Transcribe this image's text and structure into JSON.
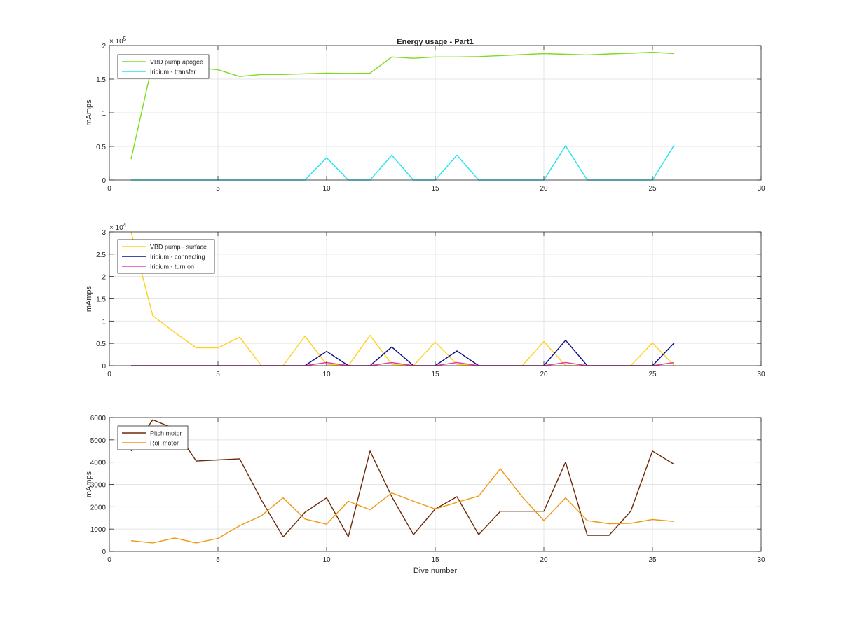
{
  "figure": {
    "title": "Energy usage - Part1",
    "xlabel": "Dive number"
  },
  "colors": {
    "vbd_apogee": "#7ddc1f",
    "iridium_transfer": "#1fe4ee",
    "vbd_surface": "#ffd11a",
    "iridium_connecting": "#0a0a8c",
    "iridium_turn_on": "#e040a8",
    "pitch_motor": "#6b2a08",
    "roll_motor": "#ee9812"
  },
  "chart_data": [
    {
      "type": "line",
      "title": "Energy usage - Part1",
      "xlabel": "",
      "ylabel": "mAmps",
      "xlim": [
        0,
        30
      ],
      "ylim": [
        0,
        200000
      ],
      "x_ticks": [
        0,
        5,
        10,
        15,
        20,
        25,
        30
      ],
      "y_ticks": [
        0,
        50000,
        100000,
        150000,
        200000
      ],
      "y_tick_labels": [
        "0",
        "0.5",
        "1",
        "1.5",
        "2"
      ],
      "exponent_label": "× 10^5",
      "grid": true,
      "legend_position": "top-left",
      "series": [
        {
          "name": "VBD pump apogee",
          "color_key": "vbd_apogee",
          "x": [
            1,
            2,
            3,
            4,
            5,
            6,
            7,
            8,
            9,
            10,
            11,
            12,
            13,
            14,
            15,
            16,
            17,
            18,
            19,
            20,
            21,
            22,
            23,
            24,
            25,
            26
          ],
          "values": [
            31000,
            175000,
            168000,
            167000,
            164000,
            154000,
            157000,
            157000,
            158000,
            159000,
            158500,
            159000,
            183000,
            181000,
            183000,
            183000,
            183500,
            185000,
            186500,
            188000,
            187000,
            186000,
            187500,
            188500,
            190000,
            188000
          ]
        },
        {
          "name": "Iridium - transfer",
          "color_key": "iridium_transfer",
          "x": [
            1,
            2,
            3,
            4,
            5,
            6,
            7,
            8,
            9,
            10,
            11,
            12,
            13,
            14,
            15,
            16,
            17,
            18,
            19,
            20,
            21,
            22,
            23,
            24,
            25,
            26
          ],
          "values": [
            0,
            0,
            0,
            0,
            0,
            0,
            0,
            0,
            0,
            33000,
            0,
            0,
            37000,
            0,
            0,
            37000,
            0,
            0,
            0,
            0,
            51000,
            0,
            0,
            0,
            0,
            52000
          ]
        }
      ]
    },
    {
      "type": "line",
      "title": "",
      "xlabel": "",
      "ylabel": "mAmps",
      "xlim": [
        0,
        30
      ],
      "ylim": [
        0,
        30000
      ],
      "x_ticks": [
        0,
        5,
        10,
        15,
        20,
        25,
        30
      ],
      "y_ticks": [
        0,
        5000,
        10000,
        15000,
        20000,
        25000,
        30000
      ],
      "y_tick_labels": [
        "0",
        "0.5",
        "1",
        "1.5",
        "2",
        "2.5",
        "3"
      ],
      "exponent_label": "× 10^4",
      "grid": true,
      "legend_position": "top-left",
      "series": [
        {
          "name": "VBD pump - surface",
          "color_key": "vbd_surface",
          "x": [
            1,
            2,
            3,
            4,
            5,
            6,
            7,
            8,
            9,
            10,
            11,
            12,
            13,
            14,
            15,
            16,
            17,
            18,
            19,
            20,
            21,
            22,
            23,
            24,
            25,
            26
          ],
          "values": [
            30000,
            11200,
            7500,
            4000,
            4000,
            6400,
            0,
            0,
            6600,
            300,
            0,
            6800,
            300,
            0,
            5300,
            300,
            0,
            0,
            0,
            5400,
            0,
            0,
            0,
            0,
            5100,
            0
          ]
        },
        {
          "name": "Iridium - connecting",
          "color_key": "iridium_connecting",
          "x": [
            1,
            2,
            3,
            4,
            5,
            6,
            7,
            8,
            9,
            10,
            11,
            12,
            13,
            14,
            15,
            16,
            17,
            18,
            19,
            20,
            21,
            22,
            23,
            24,
            25,
            26
          ],
          "values": [
            0,
            0,
            0,
            0,
            0,
            0,
            0,
            0,
            0,
            3200,
            0,
            0,
            4200,
            0,
            0,
            3300,
            0,
            0,
            0,
            0,
            5700,
            0,
            0,
            0,
            0,
            5100
          ]
        },
        {
          "name": "Iridium - turn on",
          "color_key": "iridium_turn_on",
          "x": [
            1,
            2,
            3,
            4,
            5,
            6,
            7,
            8,
            9,
            10,
            11,
            12,
            13,
            14,
            15,
            16,
            17,
            18,
            19,
            20,
            21,
            22,
            23,
            24,
            25,
            26
          ],
          "values": [
            0,
            0,
            0,
            0,
            0,
            0,
            0,
            0,
            0,
            700,
            0,
            0,
            700,
            0,
            0,
            700,
            0,
            0,
            0,
            0,
            700,
            0,
            0,
            0,
            0,
            700
          ]
        }
      ]
    },
    {
      "type": "line",
      "title": "",
      "xlabel": "Dive number",
      "ylabel": "mAmps",
      "xlim": [
        0,
        30
      ],
      "ylim": [
        0,
        6000
      ],
      "x_ticks": [
        0,
        5,
        10,
        15,
        20,
        25,
        30
      ],
      "y_ticks": [
        0,
        1000,
        2000,
        3000,
        4000,
        5000,
        6000
      ],
      "y_tick_labels": [
        "0",
        "1000",
        "2000",
        "3000",
        "4000",
        "5000",
        "6000"
      ],
      "exponent_label": "",
      "grid": true,
      "legend_position": "top-left",
      "series": [
        {
          "name": "Pitch motor",
          "color_key": "pitch_motor",
          "x": [
            1,
            2,
            3,
            4,
            5,
            6,
            7,
            8,
            9,
            10,
            11,
            12,
            13,
            14,
            15,
            16,
            17,
            18,
            19,
            20,
            21,
            22,
            23,
            24,
            25,
            26
          ],
          "values": [
            4500,
            5900,
            5500,
            4050,
            4100,
            4150,
            2300,
            650,
            1750,
            2400,
            650,
            4500,
            2450,
            750,
            1900,
            2450,
            750,
            1800,
            1800,
            1800,
            4000,
            720,
            720,
            1800,
            4500,
            3900
          ]
        },
        {
          "name": "Roll motor",
          "color_key": "roll_motor",
          "x": [
            1,
            2,
            3,
            4,
            5,
            6,
            7,
            8,
            9,
            10,
            11,
            12,
            13,
            14,
            15,
            16,
            17,
            18,
            19,
            20,
            21,
            22,
            23,
            24,
            25,
            26
          ],
          "values": [
            480,
            380,
            600,
            380,
            580,
            1150,
            1600,
            2400,
            1450,
            1220,
            2250,
            1870,
            2620,
            2250,
            1900,
            2200,
            2480,
            3700,
            2450,
            1380,
            2400,
            1380,
            1240,
            1260,
            1430,
            1340
          ]
        }
      ]
    }
  ]
}
